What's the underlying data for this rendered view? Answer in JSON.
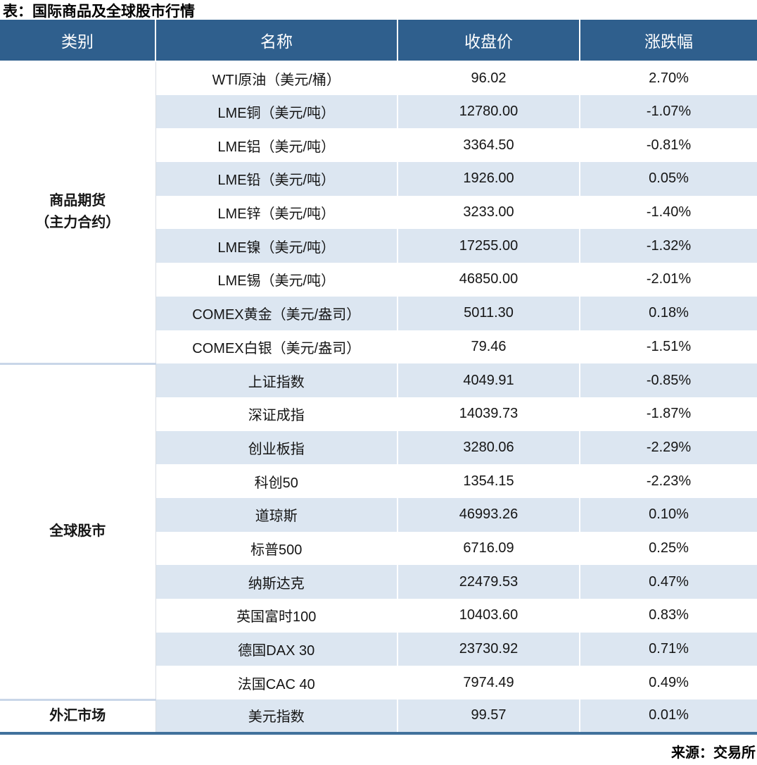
{
  "title": "表：国际商品及全球股市行情",
  "source": "来源：交易所",
  "colors": {
    "header_bg": "#2F5F8D",
    "stripe_blue": "#DCE6F1",
    "up_red": "#C00000",
    "down_green": "#538135",
    "bottom_border": "#41719C",
    "group_separator": "#C9D6E8"
  },
  "table": {
    "headers": [
      "类别",
      "名称",
      "收盘价",
      "涨跌幅"
    ],
    "groups": [
      {
        "category_lines": [
          "商品期货",
          "（主力合约）"
        ],
        "rows": [
          {
            "name": "WTI原油（美元/桶）",
            "close": "96.02",
            "change": "2.70%",
            "direction": "up"
          },
          {
            "name": "LME铜（美元/吨）",
            "close": "12780.00",
            "change": "-1.07%",
            "direction": "down"
          },
          {
            "name": "LME铝（美元/吨）",
            "close": "3364.50",
            "change": "-0.81%",
            "direction": "down"
          },
          {
            "name": "LME铅（美元/吨）",
            "close": "1926.00",
            "change": "0.05%",
            "direction": "up"
          },
          {
            "name": "LME锌（美元/吨）",
            "close": "3233.00",
            "change": "-1.40%",
            "direction": "down"
          },
          {
            "name": "LME镍（美元/吨）",
            "close": "17255.00",
            "change": "-1.32%",
            "direction": "down"
          },
          {
            "name": "LME锡（美元/吨）",
            "close": "46850.00",
            "change": "-2.01%",
            "direction": "down"
          },
          {
            "name": "COMEX黄金（美元/盎司）",
            "close": "5011.30",
            "change": "0.18%",
            "direction": "up"
          },
          {
            "name": "COMEX白银（美元/盎司）",
            "close": "79.46",
            "change": "-1.51%",
            "direction": "down"
          }
        ]
      },
      {
        "category_lines": [
          "全球股市"
        ],
        "rows": [
          {
            "name": "上证指数",
            "close": "4049.91",
            "change": "-0.85%",
            "direction": "down"
          },
          {
            "name": "深证成指",
            "close": "14039.73",
            "change": "-1.87%",
            "direction": "down"
          },
          {
            "name": "创业板指",
            "close": "3280.06",
            "change": "-2.29%",
            "direction": "down"
          },
          {
            "name": "科创50",
            "close": "1354.15",
            "change": "-2.23%",
            "direction": "down"
          },
          {
            "name": "道琼斯",
            "close": "46993.26",
            "change": "0.10%",
            "direction": "up"
          },
          {
            "name": "标普500",
            "close": "6716.09",
            "change": "0.25%",
            "direction": "up"
          },
          {
            "name": "纳斯达克",
            "close": "22479.53",
            "change": "0.47%",
            "direction": "up"
          },
          {
            "name": "英国富时100",
            "close": "10403.60",
            "change": "0.83%",
            "direction": "up"
          },
          {
            "name": "德国DAX 30",
            "close": "23730.92",
            "change": "0.71%",
            "direction": "up"
          },
          {
            "name": "法国CAC 40",
            "close": "7974.49",
            "change": "0.49%",
            "direction": "up"
          }
        ]
      },
      {
        "category_lines": [
          "外汇市场"
        ],
        "rows": [
          {
            "name": "美元指数",
            "close": "99.57",
            "change": "0.01%",
            "direction": "up"
          }
        ]
      }
    ]
  },
  "chart_data": {
    "type": "table",
    "title": "表：国际商品及全球股市行情",
    "source": "来源：交易所",
    "columns": [
      "类别",
      "名称",
      "收盘价",
      "涨跌幅"
    ],
    "rows": [
      [
        "商品期货（主力合约）",
        "WTI原油（美元/桶）",
        96.02,
        2.7
      ],
      [
        "商品期货（主力合约）",
        "LME铜（美元/吨）",
        12780.0,
        -1.07
      ],
      [
        "商品期货（主力合约）",
        "LME铝（美元/吨）",
        3364.5,
        -0.81
      ],
      [
        "商品期货（主力合约）",
        "LME铅（美元/吨）",
        1926.0,
        0.05
      ],
      [
        "商品期货（主力合约）",
        "LME锌（美元/吨）",
        3233.0,
        -1.4
      ],
      [
        "商品期货（主力合约）",
        "LME镍（美元/吨）",
        17255.0,
        -1.32
      ],
      [
        "商品期货（主力合约）",
        "LME锡（美元/吨）",
        46850.0,
        -2.01
      ],
      [
        "商品期货（主力合约）",
        "COMEX黄金（美元/盎司）",
        5011.3,
        0.18
      ],
      [
        "商品期货（主力合约）",
        "COMEX白银（美元/盎司）",
        79.46,
        -1.51
      ],
      [
        "全球股市",
        "上证指数",
        4049.91,
        -0.85
      ],
      [
        "全球股市",
        "深证成指",
        14039.73,
        -1.87
      ],
      [
        "全球股市",
        "创业板指",
        3280.06,
        -2.29
      ],
      [
        "全球股市",
        "科创50",
        1354.15,
        -2.23
      ],
      [
        "全球股市",
        "道琼斯",
        46993.26,
        0.1
      ],
      [
        "全球股市",
        "标普500",
        6716.09,
        0.25
      ],
      [
        "全球股市",
        "纳斯达克",
        22479.53,
        0.47
      ],
      [
        "全球股市",
        "英国富时100",
        10403.6,
        0.83
      ],
      [
        "全球股市",
        "德国DAX 30",
        23730.92,
        0.71
      ],
      [
        "全球股市",
        "法国CAC 40",
        7974.49,
        0.49
      ],
      [
        "外汇市场",
        "美元指数",
        99.57,
        0.01
      ]
    ],
    "notes": "涨跌幅 column: positive values rendered red (#C00000), negative values rendered green (#538135)."
  }
}
